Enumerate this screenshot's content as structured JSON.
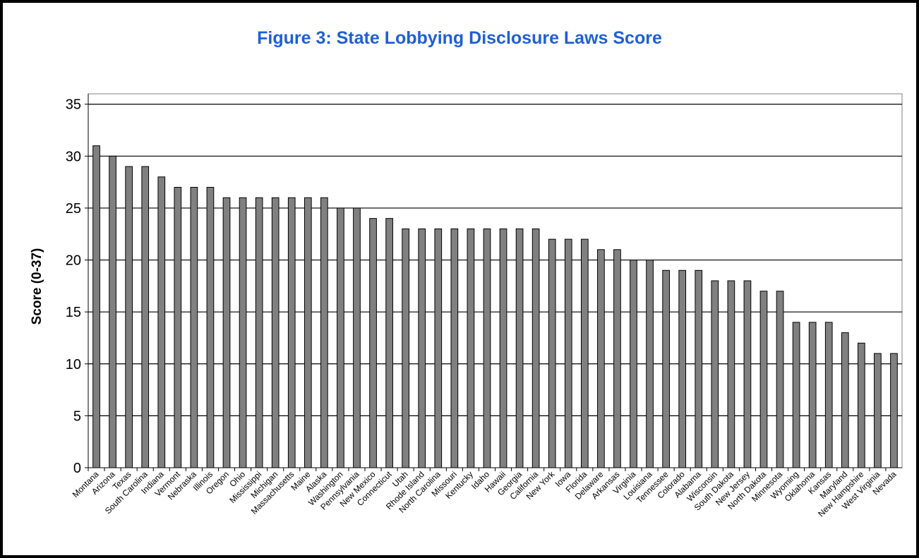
{
  "chart_data": {
    "type": "bar",
    "title": "Figure 3: State Lobbying Disclosure Laws Score",
    "xlabel": "",
    "ylabel": "Score (0-37)",
    "ylim": [
      0,
      35
    ],
    "yticks": [
      0,
      5,
      10,
      15,
      20,
      25,
      30,
      35
    ],
    "grid": true,
    "legend": "none",
    "bar_color": "#808080",
    "title_color": "#1f5fd6",
    "categories": [
      "Montana",
      "Arizona",
      "Texas",
      "South Carolina",
      "Indiana",
      "Vermont",
      "Nebraska",
      "Illinois",
      "Oregon",
      "Ohio",
      "Mississippi",
      "Michigan",
      "Massachusetts",
      "Maine",
      "Alaska",
      "Washington",
      "Pennsylvania",
      "New Mexico",
      "Connecticut",
      "Utah",
      "Rhode Island",
      "North Carolina",
      "Missouri",
      "Kentucky",
      "Idaho",
      "Hawaii",
      "Georgia",
      "California",
      "New York",
      "Iowa",
      "Florida",
      "Delaware",
      "Arkansas",
      "Virginia",
      "Louisiana",
      "Tennessee",
      "Colorado",
      "Alabama",
      "Wisconsin",
      "South Dakota",
      "New Jersey",
      "North Dakota",
      "Minnesota",
      "Wyoming",
      "Oklahoma",
      "Kansas",
      "Maryland",
      "New Hampshire",
      "West Virginia",
      "Nevada"
    ],
    "values": [
      31,
      30,
      29,
      29,
      28,
      27,
      27,
      27,
      26,
      26,
      26,
      26,
      26,
      26,
      26,
      25,
      25,
      24,
      24,
      23,
      23,
      23,
      23,
      23,
      23,
      23,
      23,
      23,
      22,
      22,
      22,
      21,
      21,
      20,
      20,
      19,
      19,
      19,
      18,
      18,
      18,
      17,
      17,
      14,
      14,
      14,
      13,
      12,
      11,
      11
    ]
  }
}
